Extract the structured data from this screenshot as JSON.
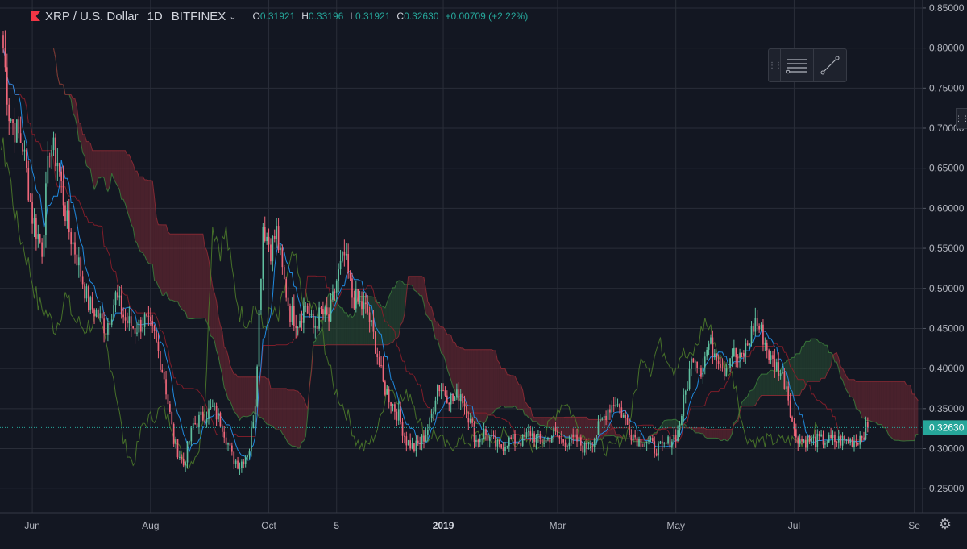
{
  "symbol": {
    "title": "XRP / U.S. Dollar",
    "interval": "1D",
    "exchange": "BITFINEX",
    "open_label": "O",
    "open": "0.31921",
    "high_label": "H",
    "high": "0.33196",
    "low_label": "L",
    "low": "0.31921",
    "close_label": "C",
    "close": "0.32630",
    "change": "+0.00709 (+2.22%)"
  },
  "colors": {
    "background": "#131722",
    "grid": "#2a2e39",
    "up": "#26a69a",
    "down": "#ef5350",
    "up_candle": "#5fbf9f",
    "down_candle": "#f0677a",
    "cloud_bear": "#8b2e3a",
    "cloud_bull": "#2e5e3a",
    "tenkan": "#2196f3",
    "kijun": "#8b1e2a",
    "chikou": "#4c7a2a",
    "price_line": "#26a69a"
  },
  "icons": {
    "flag": "red-flag-icon",
    "chevron": "chevron-down-icon",
    "grip": "drag-grip-icon",
    "lines": "horizontal-lines-icon",
    "trend": "trend-line-icon",
    "settings": "gear-icon"
  },
  "chart_data": {
    "type": "candlestick",
    "price_scale": {
      "min": 0.22,
      "max": 0.86,
      "ticks": [
        "0.85000",
        "0.80000",
        "0.75000",
        "0.70000",
        "0.65000",
        "0.60000",
        "0.55000",
        "0.50000",
        "0.45000",
        "0.40000",
        "0.35000",
        "0.30000",
        "0.25000"
      ],
      "last_price_label": "0.32630",
      "last_price": 0.3263
    },
    "time_scale": {
      "labels": [
        {
          "text": "Jun",
          "day": 15
        },
        {
          "text": "Aug",
          "day": 76
        },
        {
          "text": "Oct",
          "day": 137
        },
        {
          "text": "5",
          "day": 172
        },
        {
          "text": "2019",
          "day": 227
        },
        {
          "text": "Mar",
          "day": 286
        },
        {
          "text": "May",
          "day": 347
        },
        {
          "text": "Jul",
          "day": 408
        },
        {
          "text": "Se",
          "day": 470
        }
      ],
      "total_days": 476,
      "last_candle_day": 446
    },
    "price_anchors": [
      [
        0,
        0.8
      ],
      [
        3,
        0.72
      ],
      [
        6,
        0.7
      ],
      [
        10,
        0.68
      ],
      [
        15,
        0.59
      ],
      [
        20,
        0.55
      ],
      [
        24,
        0.68
      ],
      [
        28,
        0.66
      ],
      [
        33,
        0.58
      ],
      [
        38,
        0.54
      ],
      [
        44,
        0.48
      ],
      [
        48,
        0.47
      ],
      [
        53,
        0.45
      ],
      [
        58,
        0.49
      ],
      [
        63,
        0.46
      ],
      [
        68,
        0.45
      ],
      [
        73,
        0.46
      ],
      [
        78,
        0.44
      ],
      [
        83,
        0.39
      ],
      [
        88,
        0.31
      ],
      [
        93,
        0.28
      ],
      [
        98,
        0.33
      ],
      [
        103,
        0.34
      ],
      [
        108,
        0.35
      ],
      [
        113,
        0.33
      ],
      [
        118,
        0.29
      ],
      [
        122,
        0.28
      ],
      [
        127,
        0.3
      ],
      [
        130,
        0.36
      ],
      [
        134,
        0.58
      ],
      [
        138,
        0.55
      ],
      [
        141,
        0.57
      ],
      [
        144,
        0.52
      ],
      [
        148,
        0.47
      ],
      [
        152,
        0.46
      ],
      [
        156,
        0.48
      ],
      [
        160,
        0.45
      ],
      [
        164,
        0.47
      ],
      [
        168,
        0.46
      ],
      [
        172,
        0.51
      ],
      [
        176,
        0.54
      ],
      [
        180,
        0.49
      ],
      [
        184,
        0.48
      ],
      [
        188,
        0.47
      ],
      [
        192,
        0.43
      ],
      [
        196,
        0.38
      ],
      [
        200,
        0.36
      ],
      [
        204,
        0.34
      ],
      [
        208,
        0.31
      ],
      [
        212,
        0.3
      ],
      [
        216,
        0.31
      ],
      [
        220,
        0.33
      ],
      [
        224,
        0.38
      ],
      [
        228,
        0.37
      ],
      [
        232,
        0.36
      ],
      [
        236,
        0.37
      ],
      [
        240,
        0.34
      ],
      [
        244,
        0.31
      ],
      [
        248,
        0.32
      ],
      [
        252,
        0.31
      ],
      [
        256,
        0.3
      ],
      [
        260,
        0.31
      ],
      [
        264,
        0.31
      ],
      [
        268,
        0.31
      ],
      [
        272,
        0.32
      ],
      [
        276,
        0.31
      ],
      [
        280,
        0.31
      ],
      [
        284,
        0.32
      ],
      [
        288,
        0.31
      ],
      [
        292,
        0.31
      ],
      [
        296,
        0.31
      ],
      [
        300,
        0.3
      ],
      [
        304,
        0.31
      ],
      [
        308,
        0.33
      ],
      [
        312,
        0.35
      ],
      [
        316,
        0.36
      ],
      [
        320,
        0.34
      ],
      [
        324,
        0.32
      ],
      [
        328,
        0.31
      ],
      [
        332,
        0.31
      ],
      [
        336,
        0.3
      ],
      [
        340,
        0.3
      ],
      [
        344,
        0.31
      ],
      [
        348,
        0.32
      ],
      [
        352,
        0.37
      ],
      [
        356,
        0.42
      ],
      [
        360,
        0.4
      ],
      [
        364,
        0.43
      ],
      [
        368,
        0.42
      ],
      [
        372,
        0.4
      ],
      [
        376,
        0.42
      ],
      [
        380,
        0.41
      ],
      [
        384,
        0.43
      ],
      [
        388,
        0.46
      ],
      [
        392,
        0.44
      ],
      [
        396,
        0.41
      ],
      [
        400,
        0.4
      ],
      [
        404,
        0.38
      ],
      [
        408,
        0.32
      ],
      [
        412,
        0.31
      ],
      [
        416,
        0.31
      ],
      [
        420,
        0.31
      ],
      [
        424,
        0.31
      ],
      [
        428,
        0.31
      ],
      [
        432,
        0.31
      ],
      [
        436,
        0.31
      ],
      [
        440,
        0.31
      ],
      [
        446,
        0.3263
      ]
    ]
  }
}
